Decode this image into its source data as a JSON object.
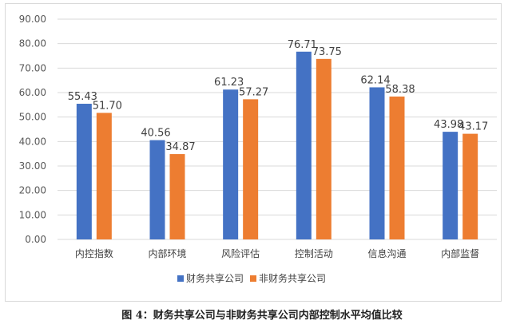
{
  "caption": "图 4：财务共享公司与非财务共享公司内部控制水平均值比较",
  "chart_data": {
    "type": "bar",
    "categories": [
      "内控指数",
      "内部环境",
      "风险评估",
      "控制活动",
      "信息沟通",
      "内部监督"
    ],
    "series": [
      {
        "name": "财务共享公司",
        "color": "#4472c4",
        "values": [
          55.43,
          40.56,
          61.23,
          76.71,
          62.14,
          43.98
        ]
      },
      {
        "name": "非财务共享公司",
        "color": "#ed7d31",
        "values": [
          51.7,
          34.87,
          57.27,
          73.75,
          58.38,
          43.17
        ]
      }
    ],
    "data_labels": [
      [
        "55.43",
        "40.56",
        "61.23",
        "76.71",
        "62.14",
        "43.98"
      ],
      [
        "51.70",
        "34.87",
        "57.27",
        "73.75",
        "58.38",
        "43.17"
      ]
    ],
    "yticks": [
      "0.00",
      "10.00",
      "20.00",
      "30.00",
      "40.00",
      "50.00",
      "60.00",
      "70.00",
      "80.00",
      "90.00"
    ],
    "ylim": [
      0,
      90
    ],
    "grid": true,
    "legend_position": "bottom",
    "title": "",
    "xlabel": "",
    "ylabel": ""
  }
}
